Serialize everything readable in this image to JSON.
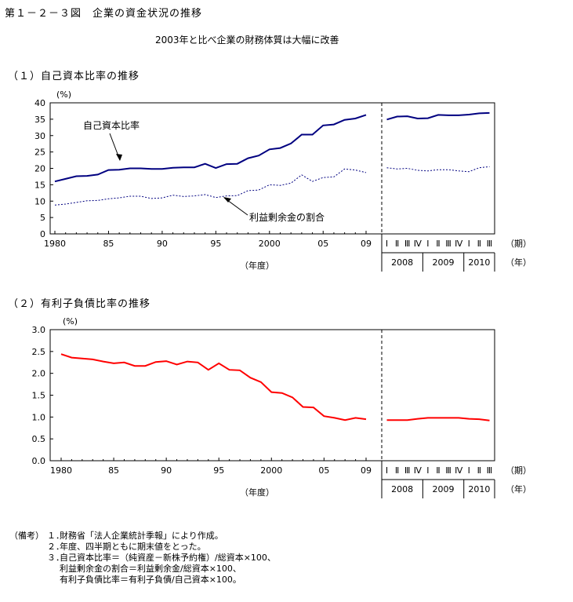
{
  "figure": {
    "title": "第１－２－３図　企業の資金状況の推移",
    "subtitle": "2003年と比べ企業の財務体質は大幅に改善"
  },
  "panels": {
    "p1": {
      "title": "（１）自己資本比率の推移"
    },
    "p2": {
      "title": "（２）有利子負債比率の推移"
    }
  },
  "notes": {
    "lead": "（備考）",
    "items": [
      {
        "num": "１．",
        "text": "財務省「法人企業統計季報」により作成。"
      },
      {
        "num": "２．",
        "text": "年度、四半期ともに期末値をとった。"
      },
      {
        "num": "３．",
        "text": "自己資本比率＝（純資産－新株予約権）/総資本×100、"
      },
      {
        "num": "",
        "text": "利益剰余金の割合＝利益剰余金/総資本×100、"
      },
      {
        "num": "",
        "text": "有利子負債比率＝有利子負債/自己資本×100。"
      }
    ]
  },
  "chart_data": [
    {
      "type": "line",
      "title": "（１）自己資本比率の推移",
      "ylabel": "(%)",
      "ylim": [
        0,
        40
      ],
      "yticks": [
        "0",
        "5",
        "10",
        "15",
        "20",
        "25",
        "30",
        "35",
        "40"
      ],
      "annual": {
        "x": [
          1980,
          1981,
          1982,
          1983,
          1984,
          1985,
          1986,
          1987,
          1988,
          1989,
          1990,
          1991,
          1992,
          1993,
          1994,
          1995,
          1996,
          1997,
          1998,
          1999,
          2000,
          2001,
          2002,
          2003,
          2004,
          2005,
          2006,
          2007,
          2008,
          2009
        ],
        "tick_labels": [
          "1980",
          "85",
          "90",
          "95",
          "2000",
          "05",
          "09"
        ],
        "xlabel": "（年度）"
      },
      "quarterly": {
        "quarter_labels": [
          "Ⅰ",
          "Ⅱ",
          "Ⅲ",
          "Ⅳ",
          "Ⅰ",
          "Ⅱ",
          "Ⅲ",
          "Ⅳ",
          "Ⅰ",
          "Ⅱ",
          "Ⅲ"
        ],
        "year_labels": [
          "2008",
          "2009",
          "2010"
        ],
        "period_unit": "（期）",
        "year_unit": "（年）"
      },
      "series": [
        {
          "name": "自己資本比率",
          "color": "#000080",
          "style": "solid",
          "annual": [
            16.0,
            16.8,
            17.6,
            17.7,
            18.1,
            19.5,
            19.6,
            20.0,
            20.0,
            19.8,
            19.8,
            20.2,
            20.3,
            20.3,
            21.4,
            20.1,
            21.3,
            21.4,
            23.1,
            23.9,
            25.8,
            26.2,
            27.6,
            30.3,
            30.3,
            33.1,
            33.4,
            34.8,
            35.2,
            36.3
          ],
          "quarterly": [
            34.9,
            35.8,
            35.9,
            35.2,
            35.3,
            36.3,
            36.2,
            36.2,
            36.4,
            36.8,
            36.9
          ]
        },
        {
          "name": "利益剰余金の割合",
          "color": "#000080",
          "style": "dotted",
          "annual": [
            8.8,
            9.1,
            9.6,
            10.1,
            10.2,
            10.7,
            11.0,
            11.5,
            11.5,
            10.8,
            11.0,
            11.8,
            11.4,
            11.6,
            12.0,
            11.1,
            11.6,
            11.7,
            13.2,
            13.4,
            15.0,
            14.8,
            15.5,
            18.0,
            16.0,
            17.2,
            17.4,
            19.8,
            19.5,
            18.7
          ],
          "quarterly": [
            20.2,
            19.8,
            20.0,
            19.4,
            19.2,
            19.6,
            19.6,
            19.2,
            19.0,
            20.2,
            20.5
          ]
        }
      ]
    },
    {
      "type": "line",
      "title": "（２）有利子負債比率の推移",
      "ylabel": "(%)",
      "ylim": [
        0,
        3
      ],
      "yticks": [
        "0.0",
        "0.5",
        "1.0",
        "1.5",
        "2.0",
        "2.5",
        "3.0"
      ],
      "annual": {
        "x": [
          1980,
          1981,
          1982,
          1983,
          1984,
          1985,
          1986,
          1987,
          1988,
          1989,
          1990,
          1991,
          1992,
          1993,
          1994,
          1995,
          1996,
          1997,
          1998,
          1999,
          2000,
          2001,
          2002,
          2003,
          2004,
          2005,
          2006,
          2007,
          2008,
          2009
        ],
        "tick_labels": [
          "1980",
          "85",
          "90",
          "95",
          "2000",
          "05",
          "09"
        ],
        "xlabel": "（年度）"
      },
      "quarterly": {
        "quarter_labels": [
          "Ⅰ",
          "Ⅱ",
          "Ⅲ",
          "Ⅳ",
          "Ⅰ",
          "Ⅱ",
          "Ⅲ",
          "Ⅳ",
          "Ⅰ",
          "Ⅱ",
          "Ⅲ"
        ],
        "year_labels": [
          "2008",
          "2009",
          "2010"
        ],
        "period_unit": "（期）",
        "year_unit": "（年）"
      },
      "series": [
        {
          "name": "",
          "color": "#ff0000",
          "style": "solid",
          "annual": [
            2.44,
            2.36,
            2.34,
            2.32,
            2.27,
            2.23,
            2.25,
            2.17,
            2.17,
            2.26,
            2.28,
            2.2,
            2.27,
            2.25,
            2.08,
            2.23,
            2.08,
            2.07,
            1.9,
            1.8,
            1.57,
            1.55,
            1.45,
            1.23,
            1.22,
            1.02,
            0.98,
            0.93,
            0.98,
            0.95
          ],
          "quarterly": [
            0.93,
            0.93,
            0.93,
            0.96,
            0.98,
            0.98,
            0.98,
            0.98,
            0.96,
            0.95,
            0.92
          ]
        }
      ]
    }
  ]
}
